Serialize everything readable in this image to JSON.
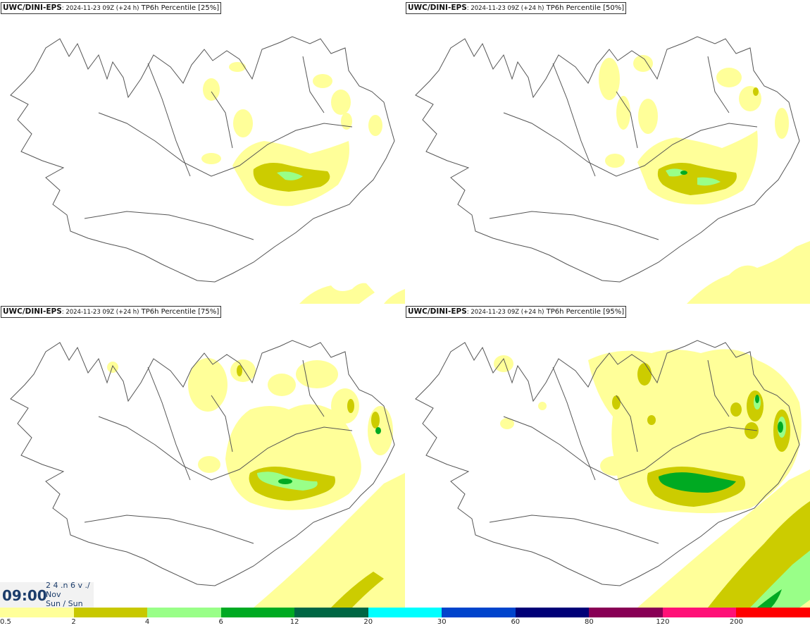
{
  "panels": [
    {
      "model": "UWC/DINI-EPS",
      "meta": ": 2024-11-23 09Z (+24 h)",
      "field": "TP6h Percentile [25%]",
      "percentile": 25
    },
    {
      "model": "UWC/DINI-EPS",
      "meta": ": 2024-11-23 09Z (+24 h)",
      "field": "TP6h Percentile [50%]",
      "percentile": 50
    },
    {
      "model": "UWC/DINI-EPS",
      "meta": ": 2024-11-23 09Z (+24 h)",
      "field": "TP6h Percentile [75%]",
      "percentile": 75
    },
    {
      "model": "UWC/DINI-EPS",
      "meta": ": 2024-11-23 09Z (+24 h)",
      "field": "TP6h Percentile [95%]",
      "percentile": 95
    }
  ],
  "clock": {
    "time": "09:00",
    "date_line1": "2 4 .n 6 v ./",
    "date_line2": "Nov",
    "date_line3": "Sun / Sun"
  },
  "legend": {
    "labels": [
      "0.5",
      "2",
      "4",
      "6",
      "12",
      "20",
      "30",
      "60",
      "80",
      "120",
      "200"
    ],
    "colors": [
      "#ffff99",
      "#c8c800",
      "#99ff88",
      "#00aa22",
      "#006644",
      "#00ffff",
      "#0044cc",
      "#000077",
      "#880055",
      "#ff1177",
      "#ff0000"
    ]
  },
  "colors": {
    "light": "#ffff99",
    "olive": "#cccc00",
    "lightgreen": "#99ff88",
    "green": "#00aa22"
  }
}
